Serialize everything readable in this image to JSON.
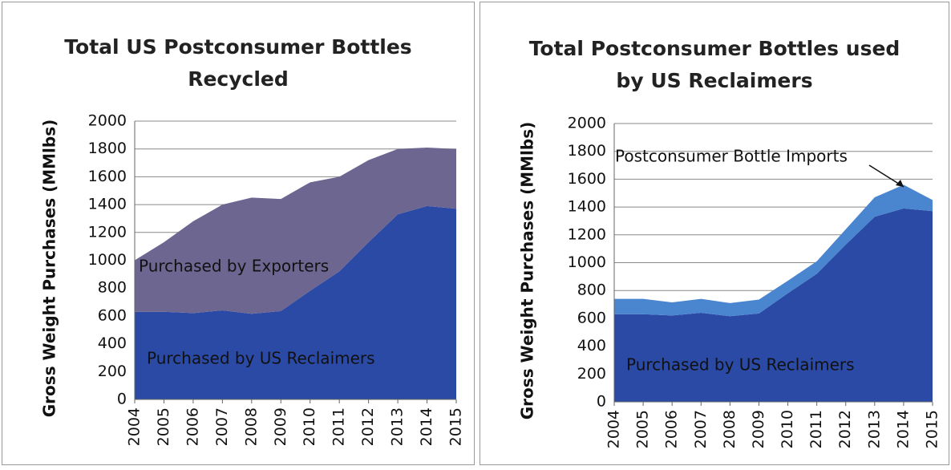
{
  "chart_data": [
    {
      "type": "stacked-area",
      "title": "Total US Postconsumer Bottles Recycled",
      "y_label": "Gross Weight Purchases (MMlbs)",
      "categories": [
        "2004",
        "2005",
        "2006",
        "2007",
        "2008",
        "2009",
        "2010",
        "2011",
        "2012",
        "2013",
        "2014",
        "2015"
      ],
      "series": [
        {
          "name": "Purchased by US Reclaimers",
          "color": "#2a4aa6",
          "values": [
            630,
            630,
            620,
            640,
            615,
            635,
            780,
            920,
            1130,
            1330,
            1390,
            1370
          ]
        },
        {
          "name": "Purchased by Exporters",
          "color": "#6c6690",
          "values": [
            370,
            500,
            660,
            760,
            835,
            805,
            780,
            680,
            590,
            470,
            420,
            430
          ]
        }
      ],
      "ylim": [
        0,
        2000
      ],
      "yticks": [
        0,
        200,
        400,
        600,
        800,
        1000,
        1200,
        1400,
        1600,
        1800,
        2000
      ],
      "grid": true
    },
    {
      "type": "stacked-area",
      "title": "Total Postconsumer Bottles used by US Reclaimers",
      "y_label": "Gross Weight Purchases (MMlbs)",
      "categories": [
        "2004",
        "2005",
        "2006",
        "2007",
        "2008",
        "2009",
        "2010",
        "2011",
        "2012",
        "2013",
        "2014",
        "2015"
      ],
      "series": [
        {
          "name": "Purchased by US Reclaimers",
          "color": "#2a4aa6",
          "values": [
            630,
            630,
            620,
            640,
            615,
            635,
            780,
            920,
            1130,
            1330,
            1390,
            1370
          ]
        },
        {
          "name": "Postconsumer Bottle Imports",
          "color": "#4a86d0",
          "values": [
            110,
            110,
            95,
            100,
            95,
            100,
            90,
            90,
            110,
            140,
            170,
            80
          ]
        }
      ],
      "ylim": [
        0,
        2000
      ],
      "yticks": [
        0,
        200,
        400,
        600,
        800,
        1000,
        1200,
        1400,
        1600,
        1800,
        2000
      ],
      "grid": true
    }
  ]
}
